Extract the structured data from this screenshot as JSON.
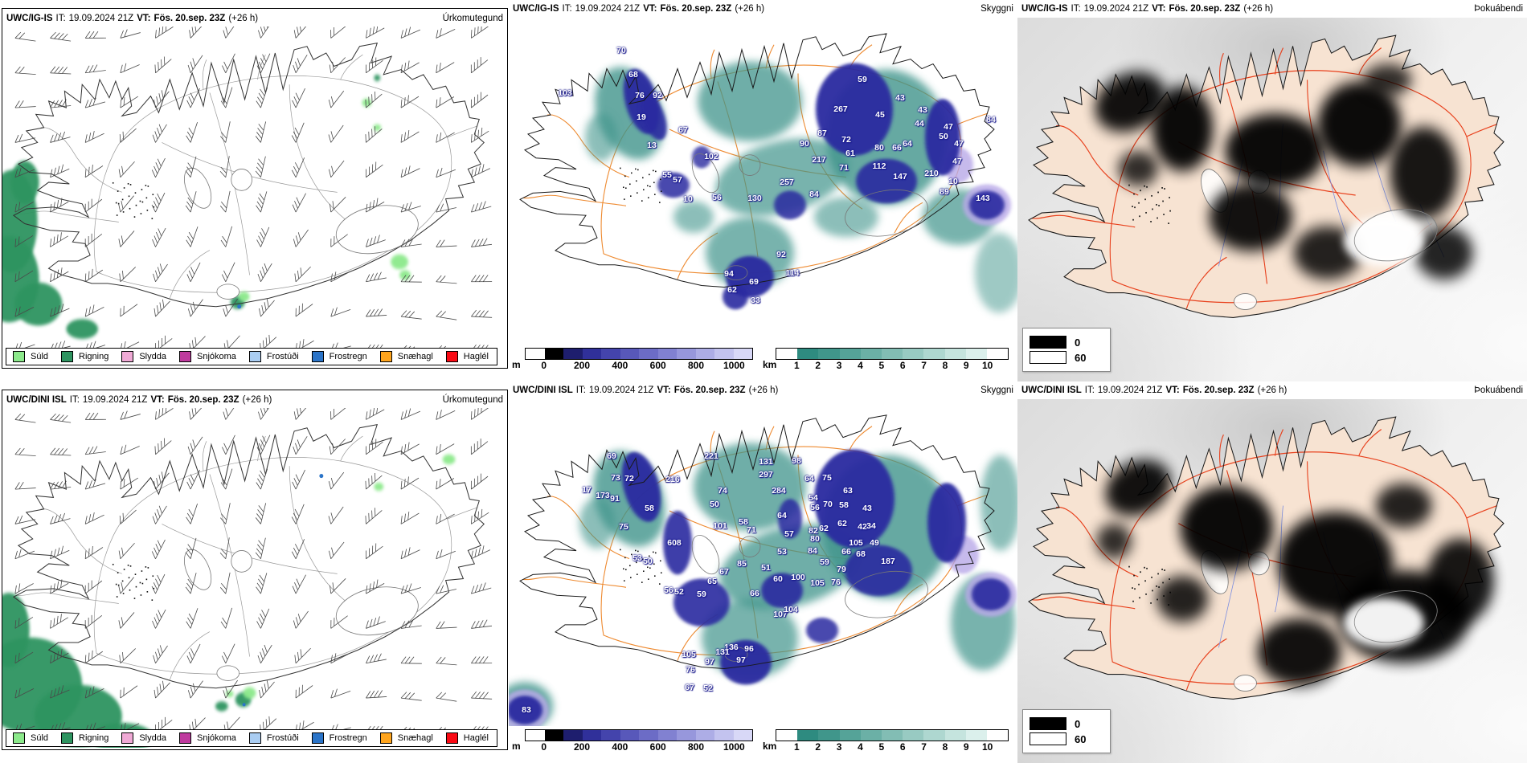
{
  "panels": {
    "top_left": {
      "model": "UWC/IG-IS",
      "it_label": "IT:",
      "it_value": "19.09.2024 21Z",
      "vt_label": "VT:",
      "vt_value": "Fös. 20.sep. 23Z",
      "plus": "(+26 h)",
      "product": "Úrkomutegund"
    },
    "top_middle": {
      "model": "UWC/IG-IS",
      "it_label": "IT:",
      "it_value": "19.09.2024 21Z",
      "vt_label": "VT:",
      "vt_value": "Fös. 20.sep. 23Z",
      "plus": "(+26 h)",
      "product": "Skyggni"
    },
    "top_right": {
      "model": "UWC/IG-IS",
      "it_label": "IT:",
      "it_value": "19.09.2024 21Z",
      "vt_label": "VT:",
      "vt_value": "Fös. 20.sep. 23Z",
      "plus": "(+26 h)",
      "product": "Þokuábendi"
    },
    "bottom_left": {
      "model": "UWC/DINI ISL",
      "it_label": "IT:",
      "it_value": "19.09.2024 21Z",
      "vt_label": "VT:",
      "vt_value": "Fös. 20.sep. 23Z",
      "plus": "(+26 h)",
      "product": "Úrkomutegund"
    },
    "bottom_middle": {
      "model": "UWC/DINI ISL",
      "it_label": "IT:",
      "it_value": "19.09.2024 21Z",
      "vt_label": "VT:",
      "vt_value": "Fös. 20.sep. 23Z",
      "plus": "(+26 h)",
      "product": "Skyggni"
    },
    "bottom_right": {
      "model": "UWC/DINI ISL",
      "it_label": "IT:",
      "it_value": "19.09.2024 21Z",
      "vt_label": "VT:",
      "vt_value": "Fös. 20.sep. 23Z",
      "plus": "(+26 h)",
      "product": "Þokuábendi"
    }
  },
  "precip_legend": {
    "items": [
      {
        "label": "Súld",
        "color": "#8ce98b"
      },
      {
        "label": "Rigning",
        "color": "#2e9460"
      },
      {
        "label": "Slydda",
        "color": "#f0aad6"
      },
      {
        "label": "Snjókoma",
        "color": "#bf3a9e"
      },
      {
        "label": "Frostúði",
        "color": "#aacdf2"
      },
      {
        "label": "Frostregn",
        "color": "#2b74c8"
      },
      {
        "label": "Snæhagl",
        "color": "#ffa51e"
      },
      {
        "label": "Haglél",
        "color": "#fa0a14"
      }
    ]
  },
  "cloudbase_colorbar": {
    "unit": "m",
    "ticks": [
      "0",
      "200",
      "400",
      "600",
      "800",
      "1000"
    ],
    "colors": [
      "#ffffff",
      "#000000",
      "#1e1e6e",
      "#30309a",
      "#4444ac",
      "#5858ba",
      "#6c6cc6",
      "#8181d1",
      "#9797dc",
      "#adade6",
      "#c3c3ef",
      "#d8d8f7"
    ]
  },
  "visibility_colorbar": {
    "unit": "km",
    "ticks": [
      "1",
      "2",
      "3",
      "4",
      "5",
      "6",
      "7",
      "8",
      "9",
      "10"
    ],
    "colors": [
      "#ffffff",
      "#2e8b80",
      "#40968b",
      "#55a398",
      "#6bb0a6",
      "#82bdb4",
      "#98cac2",
      "#aed7d0",
      "#c5e4de",
      "#dbf0ec",
      "#ffffff"
    ]
  },
  "fog_legend": {
    "items": [
      {
        "color": "#000000",
        "label": "0"
      },
      {
        "color": "#ffffff",
        "label": "60"
      }
    ]
  },
  "stations": {
    "top_middle": [
      [
        70,
        140,
        41
      ],
      [
        68,
        155,
        72
      ],
      [
        76,
        163,
        98
      ],
      [
        92,
        185,
        98
      ],
      [
        103,
        70,
        95
      ],
      [
        19,
        165,
        125
      ],
      [
        13,
        178,
        160
      ],
      [
        67,
        217,
        141
      ],
      [
        102,
        252,
        174
      ],
      [
        55,
        197,
        197
      ],
      [
        57,
        210,
        203
      ],
      [
        56,
        259,
        226
      ],
      [
        10,
        223,
        228
      ],
      [
        130,
        306,
        227
      ],
      [
        59,
        440,
        78
      ],
      [
        267,
        413,
        115
      ],
      [
        43,
        487,
        101
      ],
      [
        45,
        462,
        122
      ],
      [
        43,
        515,
        116
      ],
      [
        44,
        511,
        133
      ],
      [
        47,
        547,
        137
      ],
      [
        50,
        541,
        149
      ],
      [
        47,
        560,
        158
      ],
      [
        47,
        558,
        180
      ],
      [
        87,
        390,
        145
      ],
      [
        90,
        368,
        158
      ],
      [
        72,
        420,
        153
      ],
      [
        61,
        425,
        170
      ],
      [
        71,
        417,
        188
      ],
      [
        80,
        461,
        163
      ],
      [
        66,
        483,
        163
      ],
      [
        64,
        496,
        158
      ],
      [
        112,
        461,
        186
      ],
      [
        147,
        487,
        199
      ],
      [
        217,
        386,
        178
      ],
      [
        210,
        526,
        195
      ],
      [
        10,
        553,
        205
      ],
      [
        89,
        542,
        219
      ],
      [
        143,
        590,
        227
      ],
      [
        257,
        346,
        207
      ],
      [
        84,
        380,
        222
      ],
      [
        84,
        600,
        128
      ],
      [
        92,
        339,
        297
      ],
      [
        94,
        274,
        321
      ],
      [
        69,
        305,
        331
      ],
      [
        62,
        278,
        342
      ],
      [
        33,
        307,
        355
      ],
      [
        114,
        353,
        320
      ]
    ],
    "bottom_middle": [
      [
        69,
        128,
        72
      ],
      [
        73,
        133,
        99
      ],
      [
        72,
        150,
        100
      ],
      [
        17,
        97,
        114
      ],
      [
        173,
        117,
        121
      ],
      [
        91,
        132,
        125
      ],
      [
        58,
        175,
        137
      ],
      [
        75,
        143,
        160
      ],
      [
        216,
        204,
        101
      ],
      [
        221,
        252,
        72
      ],
      [
        74,
        266,
        115
      ],
      [
        50,
        256,
        132
      ],
      [
        101,
        263,
        159
      ],
      [
        58,
        292,
        154
      ],
      [
        71,
        302,
        164
      ],
      [
        131,
        320,
        79
      ],
      [
        297,
        320,
        95
      ],
      [
        284,
        336,
        115
      ],
      [
        98,
        358,
        78
      ],
      [
        64,
        374,
        100
      ],
      [
        75,
        396,
        99
      ],
      [
        54,
        379,
        124
      ],
      [
        56,
        381,
        136
      ],
      [
        70,
        397,
        132
      ],
      [
        58,
        417,
        133
      ],
      [
        63,
        422,
        115
      ],
      [
        43,
        446,
        137
      ],
      [
        62,
        415,
        156
      ],
      [
        42,
        440,
        160
      ],
      [
        34,
        451,
        159
      ],
      [
        49,
        455,
        180
      ],
      [
        64,
        340,
        146
      ],
      [
        57,
        349,
        169
      ],
      [
        53,
        340,
        191
      ],
      [
        82,
        379,
        165
      ],
      [
        80,
        381,
        175
      ],
      [
        84,
        378,
        190
      ],
      [
        62,
        392,
        162
      ],
      [
        59,
        393,
        204
      ],
      [
        66,
        420,
        191
      ],
      [
        68,
        438,
        194
      ],
      [
        105,
        432,
        180
      ],
      [
        187,
        472,
        203
      ],
      [
        85,
        290,
        207
      ],
      [
        51,
        320,
        212
      ],
      [
        60,
        335,
        226
      ],
      [
        100,
        360,
        224
      ],
      [
        105,
        384,
        231
      ],
      [
        79,
        414,
        214
      ],
      [
        76,
        407,
        230
      ],
      [
        608,
        206,
        180
      ],
      [
        53,
        160,
        199
      ],
      [
        50,
        173,
        203
      ],
      [
        56,
        199,
        240
      ],
      [
        52,
        212,
        242
      ],
      [
        59,
        240,
        245
      ],
      [
        65,
        253,
        229
      ],
      [
        67,
        268,
        217
      ],
      [
        66,
        306,
        244
      ],
      [
        107,
        338,
        270
      ],
      [
        104,
        351,
        264
      ],
      [
        136,
        277,
        311
      ],
      [
        131,
        266,
        317
      ],
      [
        96,
        299,
        313
      ],
      [
        105,
        224,
        320
      ],
      [
        97,
        250,
        329
      ],
      [
        97,
        289,
        327
      ],
      [
        76,
        226,
        339
      ],
      [
        67,
        225,
        362
      ],
      [
        52,
        248,
        363
      ],
      [
        83,
        22,
        390
      ]
    ]
  }
}
